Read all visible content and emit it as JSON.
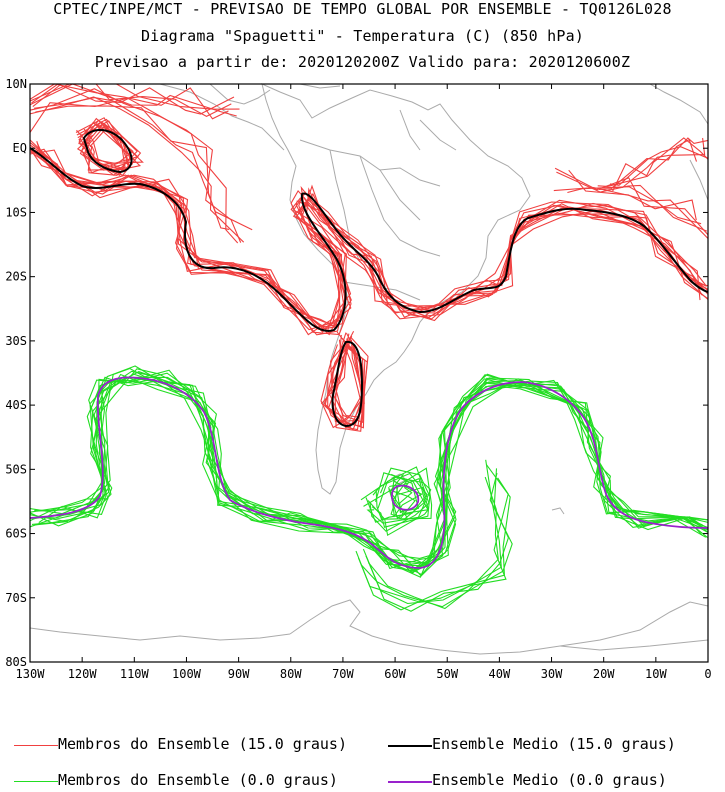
{
  "titles": {
    "line1": "CPTEC/INPE/MCT - PREVISAO DE TEMPO GLOBAL POR ENSEMBLE - TQ0126L028",
    "line2": "Diagrama \"Spaguetti\" - Temperatura (C) (850 hPa)",
    "line3": "Previsao a partir de: 2020120200Z  Valido para: 2020120600Z"
  },
  "lat_labels": [
    "10N",
    "EQ",
    "10S",
    "20S",
    "30S",
    "40S",
    "50S",
    "60S",
    "70S",
    "80S"
  ],
  "lon_labels": [
    "130W",
    "120W",
    "110W",
    "100W",
    "90W",
    "80W",
    "70W",
    "60W",
    "50W",
    "40W",
    "30W",
    "20W",
    "10W",
    "0"
  ],
  "legend": {
    "red_members": "Membros do Ensemble (15.0 graus)",
    "black_mean": "Ensemble Medio (15.0 graus)",
    "green_members": "Membros do Ensemble (0.0 graus)",
    "purple_mean": "Ensemble Medio (0.0 graus)"
  },
  "colors": {
    "members_15": "#f04040",
    "mean_15": "#000000",
    "members_0": "#22dd22",
    "mean_0": "#9922cc",
    "coastline": "#aaaaaa"
  }
}
